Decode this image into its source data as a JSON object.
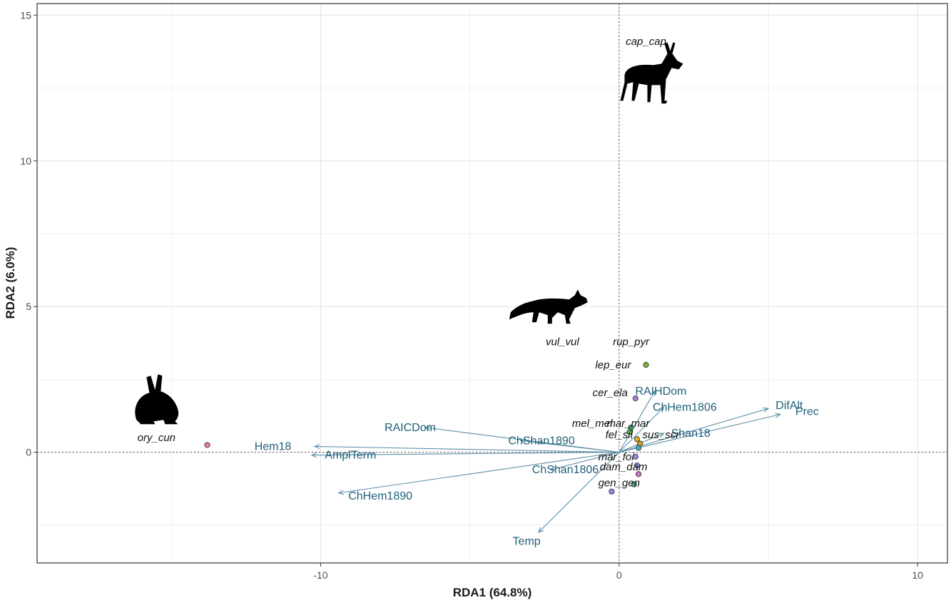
{
  "chart_data": {
    "type": "scatter",
    "xlabel": "RDA1 (64.8%)",
    "ylabel": "RDA2 (6.0%)",
    "xlim": [
      -19.5,
      11
    ],
    "ylim": [
      -3.8,
      15.4
    ],
    "x_ticks": [
      -10,
      0,
      10
    ],
    "y_ticks": [
      0,
      5,
      10,
      15
    ],
    "x_tick_labels": [
      "-10",
      "0",
      "10"
    ],
    "y_tick_labels": [
      "0",
      "5",
      "10",
      "15"
    ],
    "grid": true,
    "reference_lines": {
      "x": 0,
      "y": 0,
      "style": "dotted"
    },
    "species_points": [
      {
        "x": -13.8,
        "y": 0.25,
        "color": "#e879b8"
      },
      {
        "x": 0.9,
        "y": 3.0,
        "color": "#7fb236"
      },
      {
        "x": 0.55,
        "y": 1.85,
        "color": "#b07ad8"
      },
      {
        "x": 0.4,
        "y": 0.85,
        "color": "#3aa06a"
      },
      {
        "x": 0.35,
        "y": 0.7,
        "color": "#55b84a"
      },
      {
        "x": 0.6,
        "y": 0.45,
        "color": "#e2b21a"
      },
      {
        "x": 0.7,
        "y": 0.3,
        "color": "#d6a020"
      },
      {
        "x": 0.65,
        "y": 0.15,
        "color": "#3ab0c8"
      },
      {
        "x": 0.55,
        "y": -0.15,
        "color": "#9a8ae0"
      },
      {
        "x": 0.6,
        "y": -0.45,
        "color": "#8f9ae8"
      },
      {
        "x": 0.65,
        "y": -0.75,
        "color": "#d86fc8"
      },
      {
        "x": 0.5,
        "y": -1.1,
        "color": "#47c08a"
      },
      {
        "x": -0.25,
        "y": -1.35,
        "color": "#8a8cf0"
      }
    ],
    "species_labels": [
      {
        "text": "cap_cap",
        "x": 0.9,
        "y": 14.1
      },
      {
        "text": "rup_pyr",
        "x": 0.4,
        "y": 3.8
      },
      {
        "text": "vul_vul",
        "x": -1.9,
        "y": 3.8
      },
      {
        "text": "lep_eur",
        "x": -0.2,
        "y": 3.0
      },
      {
        "text": "cer_ela",
        "x": -0.3,
        "y": 2.05
      },
      {
        "text": "mel_mel",
        "x": -0.9,
        "y": 1.0
      },
      {
        "text": "mar_mar",
        "x": 0.3,
        "y": 1.0
      },
      {
        "text": "sus_scr",
        "x": 1.4,
        "y": 0.6
      },
      {
        "text": "fel_sil",
        "x": 0.0,
        "y": 0.6
      },
      {
        "text": "mar_foi",
        "x": -0.1,
        "y": -0.15
      },
      {
        "text": "dam_dam",
        "x": 0.15,
        "y": -0.5
      },
      {
        "text": "gen_gen",
        "x": 0.0,
        "y": -1.05
      },
      {
        "text": "ory_cun",
        "x": -15.5,
        "y": 0.5
      }
    ],
    "env_vectors": [
      {
        "name": "Hem18",
        "x": -10.2,
        "y": 0.2,
        "label_x": -11.6,
        "label_y": 0.2
      },
      {
        "name": "AmplTerm",
        "x": -10.3,
        "y": -0.1,
        "label_x": -9.0,
        "label_y": -0.1
      },
      {
        "name": "RAICDom",
        "x": -6.5,
        "y": 0.85,
        "label_x": -7.0,
        "label_y": 0.85
      },
      {
        "name": "ChShan1890",
        "x": -3.3,
        "y": 0.4,
        "label_x": -2.6,
        "label_y": 0.4
      },
      {
        "name": "ChHem1890",
        "x": -9.4,
        "y": -1.4,
        "label_x": -8.0,
        "label_y": -1.5
      },
      {
        "name": "ChShan1806",
        "x": -2.3,
        "y": -0.6,
        "label_x": -1.8,
        "label_y": -0.6
      },
      {
        "name": "Temp",
        "x": -2.7,
        "y": -2.75,
        "label_x": -3.1,
        "label_y": -3.05
      },
      {
        "name": "RAIHDom",
        "x": 1.2,
        "y": 2.1,
        "label_x": 1.4,
        "label_y": 2.1
      },
      {
        "name": "ChHem1806",
        "x": 1.5,
        "y": 1.55,
        "label_x": 2.2,
        "label_y": 1.55
      },
      {
        "name": "Shan18",
        "x": 1.5,
        "y": 0.65,
        "label_x": 2.4,
        "label_y": 0.65
      },
      {
        "name": "DifAlt",
        "x": 5.0,
        "y": 1.5,
        "label_x": 5.7,
        "label_y": 1.6
      },
      {
        "name": "Prec",
        "x": 5.4,
        "y": 1.3,
        "label_x": 6.3,
        "label_y": 1.4
      }
    ],
    "silhouettes": [
      {
        "icon": "roe-deer-icon",
        "x": 0.9,
        "y": 12.7
      },
      {
        "icon": "fox-icon",
        "x": -2.2,
        "y": 5.0
      },
      {
        "icon": "rabbit-icon",
        "x": -15.5,
        "y": 1.6
      }
    ],
    "colors": {
      "vector": "#5b8ea8",
      "vector_label": "#1f5f7a",
      "grid": "#e6e6e6",
      "axis_frame": "#333333"
    }
  }
}
